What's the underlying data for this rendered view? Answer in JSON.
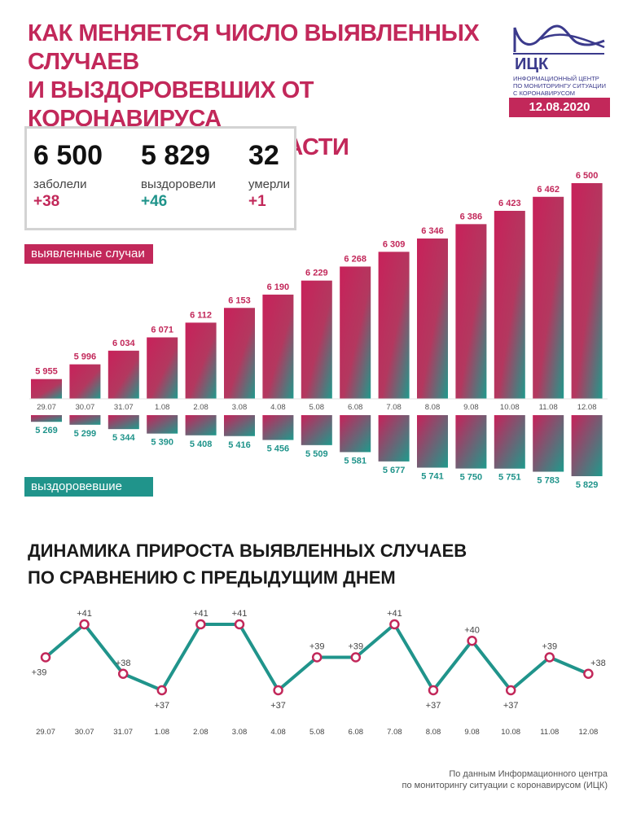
{
  "header": {
    "title_lines": [
      "КАК МЕНЯЕТСЯ ЧИСЛО ВЫЯВЛЕННЫХ СЛУЧАЕВ",
      "И ВЫЗДОРОВЕВШИХ ОТ КОРОНАВИРУСА",
      "В ЯРОСЛАВСКОЙ ОБЛАСТИ"
    ],
    "logo_abbr": "ИЦК",
    "logo_desc_lines": [
      "ИНФОРМАЦИОННЫЙ ЦЕНТР",
      "ПО МОНИТОРИНГУ СИТУАЦИИ",
      "С КОРОНАВИРУСОМ"
    ],
    "date": "12.08.2020"
  },
  "stats": [
    {
      "value": "6 500",
      "label": "заболели",
      "delta": "+38",
      "color": "#c2285a"
    },
    {
      "value": "5 829",
      "label": "выздоровели",
      "delta": "+46",
      "color": "#20948b"
    },
    {
      "value": "32",
      "label": "умерли",
      "delta": "+1",
      "color": "#c2285a"
    }
  ],
  "tags": {
    "cases": "выявленные случаи",
    "recovered": "выздоровевшие"
  },
  "colors": {
    "pink": "#c2285a",
    "teal": "#20948b"
  },
  "chart_data": [
    {
      "type": "bar",
      "categories": [
        "29.07",
        "30.07",
        "31.07",
        "1.08",
        "2.08",
        "3.08",
        "4.08",
        "5.08",
        "6.08",
        "7.08",
        "8.08",
        "9.08",
        "10.08",
        "11.08",
        "12.08"
      ],
      "series": [
        {
          "name": "выявленные случаи",
          "values": [
            5955,
            5996,
            6034,
            6071,
            6112,
            6153,
            6190,
            6229,
            6268,
            6309,
            6346,
            6386,
            6423,
            6462,
            6500
          ]
        },
        {
          "name": "выздоровевшие",
          "values": [
            5269,
            5299,
            5344,
            5390,
            5408,
            5416,
            5456,
            5509,
            5581,
            5677,
            5741,
            5750,
            5751,
            5783,
            5829
          ]
        }
      ],
      "value_labels": {
        "cases": [
          "5 955",
          "5 996",
          "6 034",
          "6 071",
          "6 112",
          "6 153",
          "6 190",
          "6 229",
          "6 268",
          "6 309",
          "6 346",
          "6 386",
          "6 423",
          "6 462",
          "6 500"
        ],
        "recovered": [
          "5 269",
          "5 299",
          "5 344",
          "5 390",
          "5 408",
          "5 416",
          "5 456",
          "5 509",
          "5 581",
          "5 677",
          "5 741",
          "5 750",
          "5 751",
          "5 783",
          "5 829"
        ]
      }
    },
    {
      "type": "line",
      "title_lines": [
        "ДИНАМИКА ПРИРОСТА ВЫЯВЛЕННЫХ СЛУЧАЕВ",
        "ПО СРАВНЕНИЮ С ПРЕДЫДУЩИМ ДНЕМ"
      ],
      "x": [
        "29.07",
        "30.07",
        "31.07",
        "1.08",
        "2.08",
        "3.08",
        "4.08",
        "5.08",
        "6.08",
        "7.08",
        "8.08",
        "9.08",
        "10.08",
        "11.08",
        "12.08"
      ],
      "series": [
        {
          "values": [
            39,
            41,
            38,
            37,
            41,
            41,
            37,
            39,
            39,
            41,
            37,
            40,
            37,
            39,
            38
          ]
        }
      ],
      "labels": [
        "+39",
        "+41",
        "+38",
        "+37",
        "+41",
        "+41",
        "+37",
        "+39",
        "+39",
        "+41",
        "+37",
        "+40",
        "+37",
        "+39",
        "+38"
      ],
      "ylim": [
        37,
        41
      ]
    }
  ],
  "source_lines": [
    "По данным Информационного центра",
    "по мониторингу ситуации с коронавирусом (ИЦК)"
  ]
}
